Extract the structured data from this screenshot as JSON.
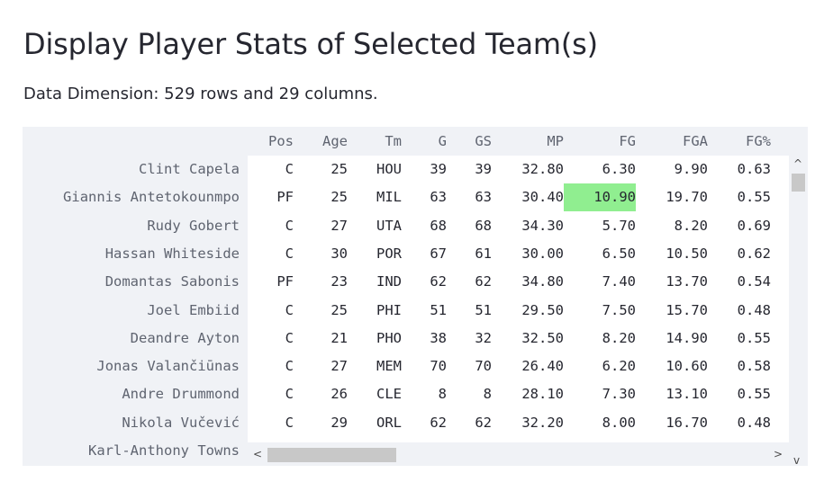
{
  "page": {
    "title": "Display Player Stats of Selected Team(s)",
    "dimension_text": "Data Dimension: 529 rows and 29 columns."
  },
  "table": {
    "columns": [
      "Pos",
      "Age",
      "Tm",
      "G",
      "GS",
      "MP",
      "FG",
      "FGA",
      "FG%"
    ],
    "rows": [
      {
        "name": "Clint Capela",
        "values": [
          "C",
          "25",
          "HOU",
          "39",
          "39",
          "32.80",
          "6.30",
          "9.90",
          "0.63"
        ]
      },
      {
        "name": "Giannis Antetokounmpo",
        "values": [
          "PF",
          "25",
          "MIL",
          "63",
          "63",
          "30.40",
          "10.90",
          "19.70",
          "0.55"
        ]
      },
      {
        "name": "Rudy Gobert",
        "values": [
          "C",
          "27",
          "UTA",
          "68",
          "68",
          "34.30",
          "5.70",
          "8.20",
          "0.69"
        ]
      },
      {
        "name": "Hassan Whiteside",
        "values": [
          "C",
          "30",
          "POR",
          "67",
          "61",
          "30.00",
          "6.50",
          "10.50",
          "0.62"
        ]
      },
      {
        "name": "Domantas Sabonis",
        "values": [
          "PF",
          "23",
          "IND",
          "62",
          "62",
          "34.80",
          "7.40",
          "13.70",
          "0.54"
        ]
      },
      {
        "name": "Joel Embiid",
        "values": [
          "C",
          "25",
          "PHI",
          "51",
          "51",
          "29.50",
          "7.50",
          "15.70",
          "0.48"
        ]
      },
      {
        "name": "Deandre Ayton",
        "values": [
          "C",
          "21",
          "PHO",
          "38",
          "32",
          "32.50",
          "8.20",
          "14.90",
          "0.55"
        ]
      },
      {
        "name": "Jonas Valančiūnas",
        "values": [
          "C",
          "27",
          "MEM",
          "70",
          "70",
          "26.40",
          "6.20",
          "10.60",
          "0.58"
        ]
      },
      {
        "name": "Andre Drummond",
        "values": [
          "C",
          "26",
          "CLE",
          "8",
          "8",
          "28.10",
          "7.30",
          "13.10",
          "0.55"
        ]
      },
      {
        "name": "Nikola Vučević",
        "values": [
          "C",
          "29",
          "ORL",
          "62",
          "62",
          "32.20",
          "8.00",
          "16.70",
          "0.48"
        ]
      },
      {
        "name": "Karl-Anthony Towns",
        "values": []
      }
    ],
    "highlight_color": "#90ee90"
  },
  "scrollbars": {
    "up_arrow": "^",
    "down_arrow": "v",
    "left_arrow": "<",
    "right_arrow": ">"
  }
}
